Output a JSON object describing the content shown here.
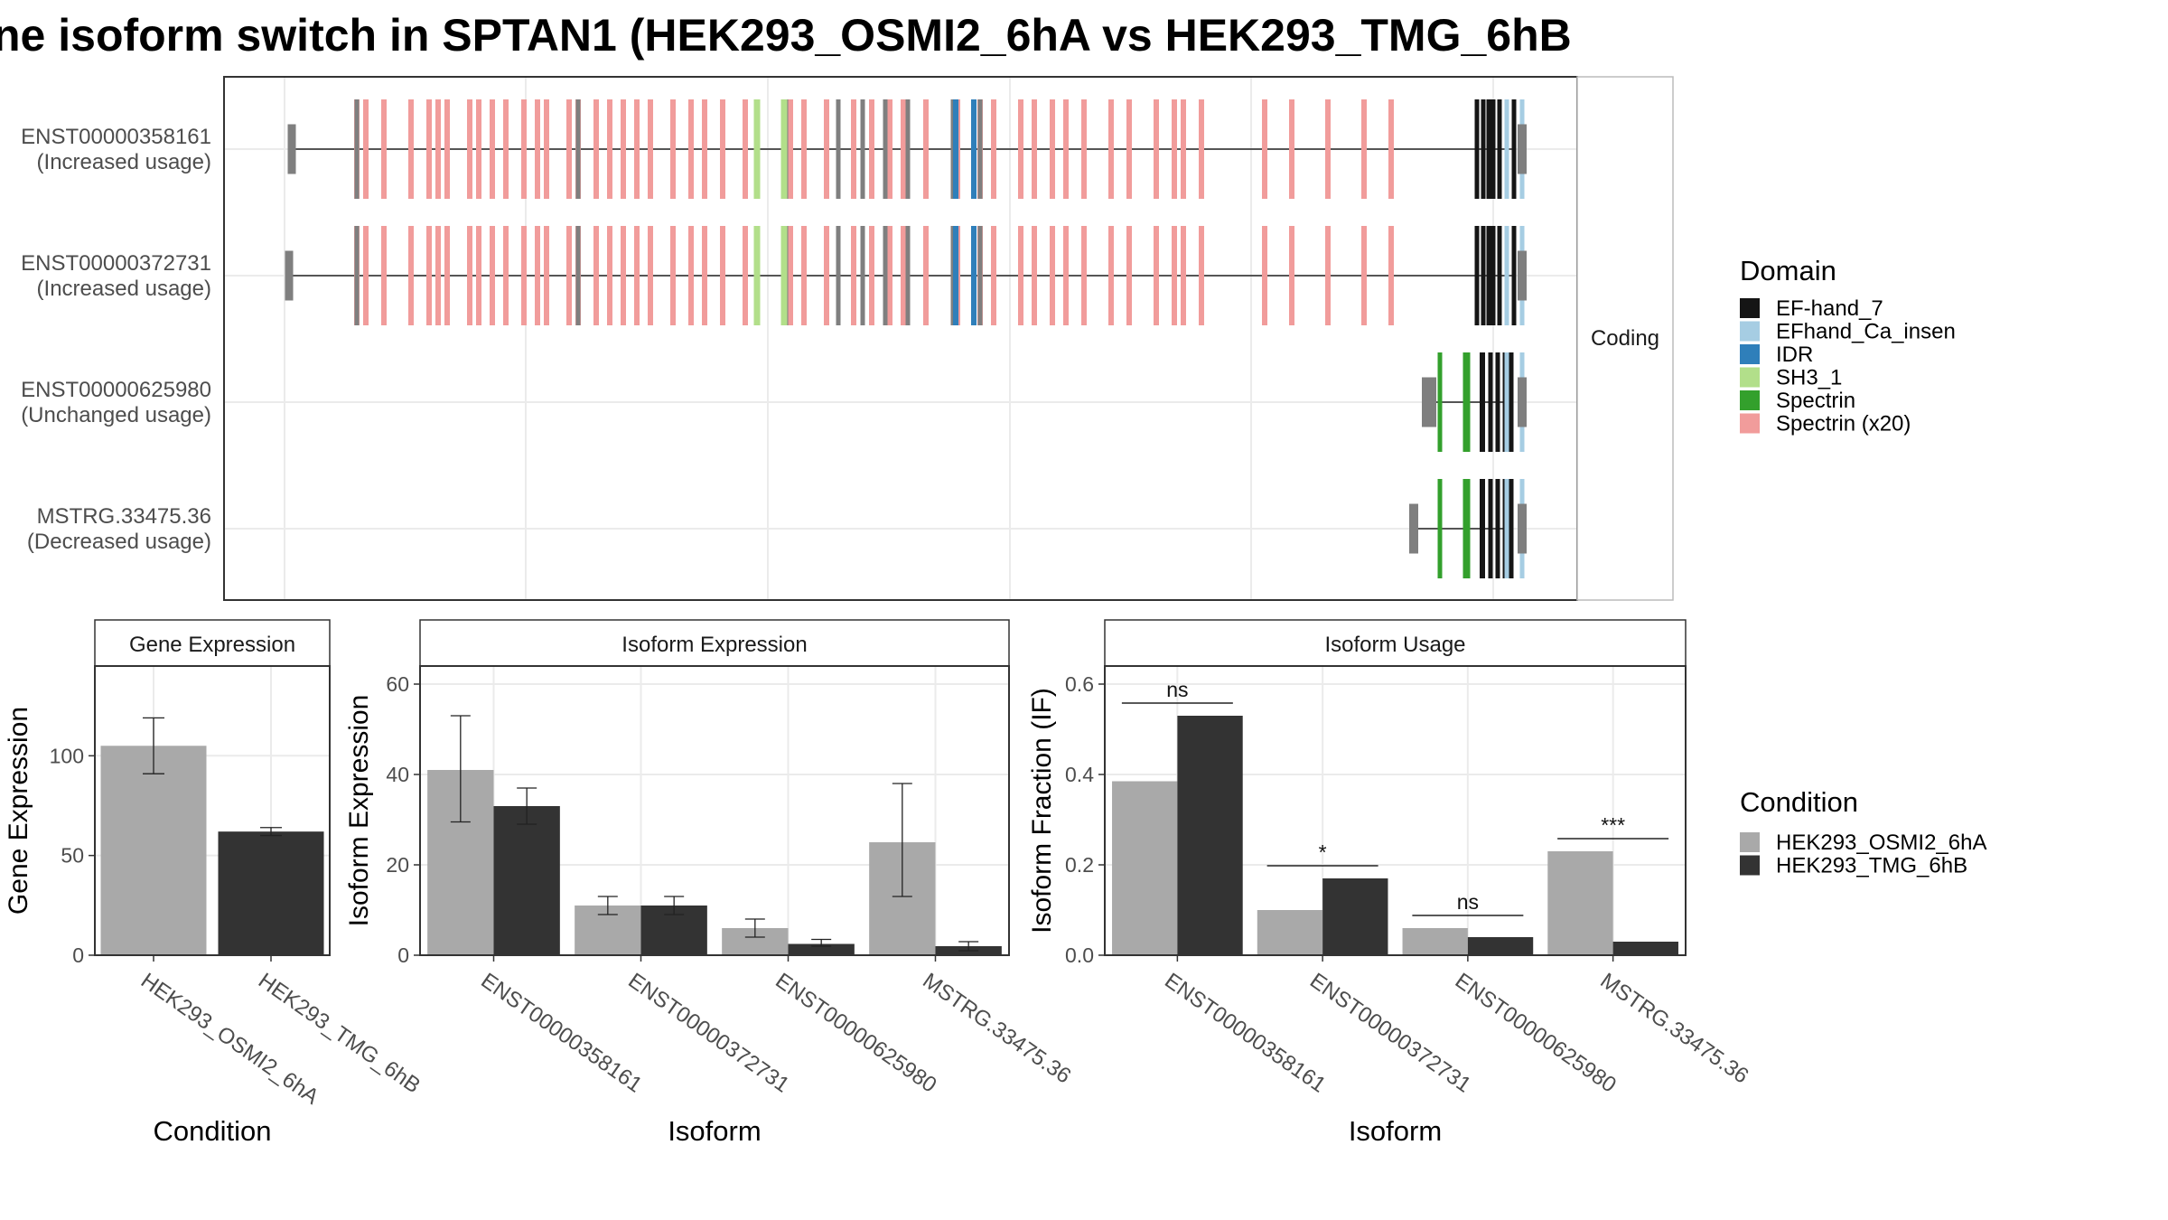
{
  "title": "ne isoform switch in SPTAN1 (HEK293_OSMI2_6hA vs HEK293_TMG_6hB",
  "colors": {
    "domain": {
      "EF-hand_7": "#151515",
      "EFhand_Ca_insen": "#a6cde3",
      "IDR": "#2f7fba",
      "SH3_1": "#b2df8a",
      "Spectrin": "#33a02c",
      "Spectrin (x20)": "#f19c9b"
    },
    "condition": {
      "HEK293_OSMI2_6hA": "#a9a9a9",
      "HEK293_TMG_6hB": "#333333"
    },
    "utr": "#7f7f7f",
    "grid": "#ebebeb",
    "panel_border": "#333333",
    "strip_bg": "#ffffff"
  },
  "transcript_panel": {
    "strip_label": "Coding",
    "rows": [
      {
        "id": "ENST00000358161",
        "note": "(Increased usage)"
      },
      {
        "id": "ENST00000372731",
        "note": "(Increased usage)"
      },
      {
        "id": "ENST00000625980",
        "note": "(Unchanged usage)"
      },
      {
        "id": "MSTRG.33475.36",
        "note": "(Decreased usage)"
      }
    ]
  },
  "legends": {
    "domain_title": "Domain",
    "domain_items": [
      "EF-hand_7",
      "EFhand_Ca_insen",
      "IDR",
      "SH3_1",
      "Spectrin",
      "Spectrin (x20)"
    ],
    "condition_title": "Condition",
    "condition_items": [
      "HEK293_OSMI2_6hA",
      "HEK293_TMG_6hB"
    ]
  },
  "chart_data": [
    {
      "type": "bar",
      "title": "Gene Expression",
      "xlabel": "Condition",
      "ylabel": "Gene Expression",
      "categories": [
        "HEK293_OSMI2_6hA",
        "HEK293_TMG_6hB"
      ],
      "values": [
        105,
        62
      ],
      "error": [
        [
          91,
          119
        ],
        [
          60,
          64
        ]
      ],
      "ylim": [
        0,
        145
      ],
      "yticks": [
        0,
        50,
        100
      ]
    },
    {
      "type": "bar",
      "title": "Isoform Expression",
      "xlabel": "Isoform",
      "ylabel": "Isoform Expression",
      "categories": [
        "ENST00000358161",
        "ENST00000372731",
        "ENST00000625980",
        "MSTRG.33475.36"
      ],
      "series": [
        {
          "name": "HEK293_OSMI2_6hA",
          "values": [
            41,
            11,
            6,
            25
          ],
          "error": [
            [
              29.5,
              53
            ],
            [
              9,
              13
            ],
            [
              4,
              8
            ],
            [
              13,
              38
            ]
          ]
        },
        {
          "name": "HEK293_TMG_6hB",
          "values": [
            33,
            11,
            2.5,
            2
          ],
          "error": [
            [
              29,
              37
            ],
            [
              9,
              13
            ],
            [
              2,
              3.5
            ],
            [
              1,
              3
            ]
          ]
        }
      ],
      "ylim": [
        0,
        64
      ],
      "yticks": [
        0,
        20,
        40,
        60
      ]
    },
    {
      "type": "bar",
      "title": "Isoform Usage",
      "xlabel": "Isoform",
      "ylabel": "Isoform Fraction (IF)",
      "categories": [
        "ENST00000358161",
        "ENST00000372731",
        "ENST00000625980",
        "MSTRG.33475.36"
      ],
      "series": [
        {
          "name": "HEK293_OSMI2_6hA",
          "values": [
            0.385,
            0.1,
            0.06,
            0.23
          ]
        },
        {
          "name": "HEK293_TMG_6hB",
          "values": [
            0.53,
            0.17,
            0.04,
            0.03
          ]
        }
      ],
      "significance": [
        "ns",
        "*",
        "ns",
        "***"
      ],
      "ylim": [
        0,
        0.64
      ],
      "yticks": [
        "0.0",
        "0.2",
        "0.4",
        "0.6"
      ]
    }
  ]
}
